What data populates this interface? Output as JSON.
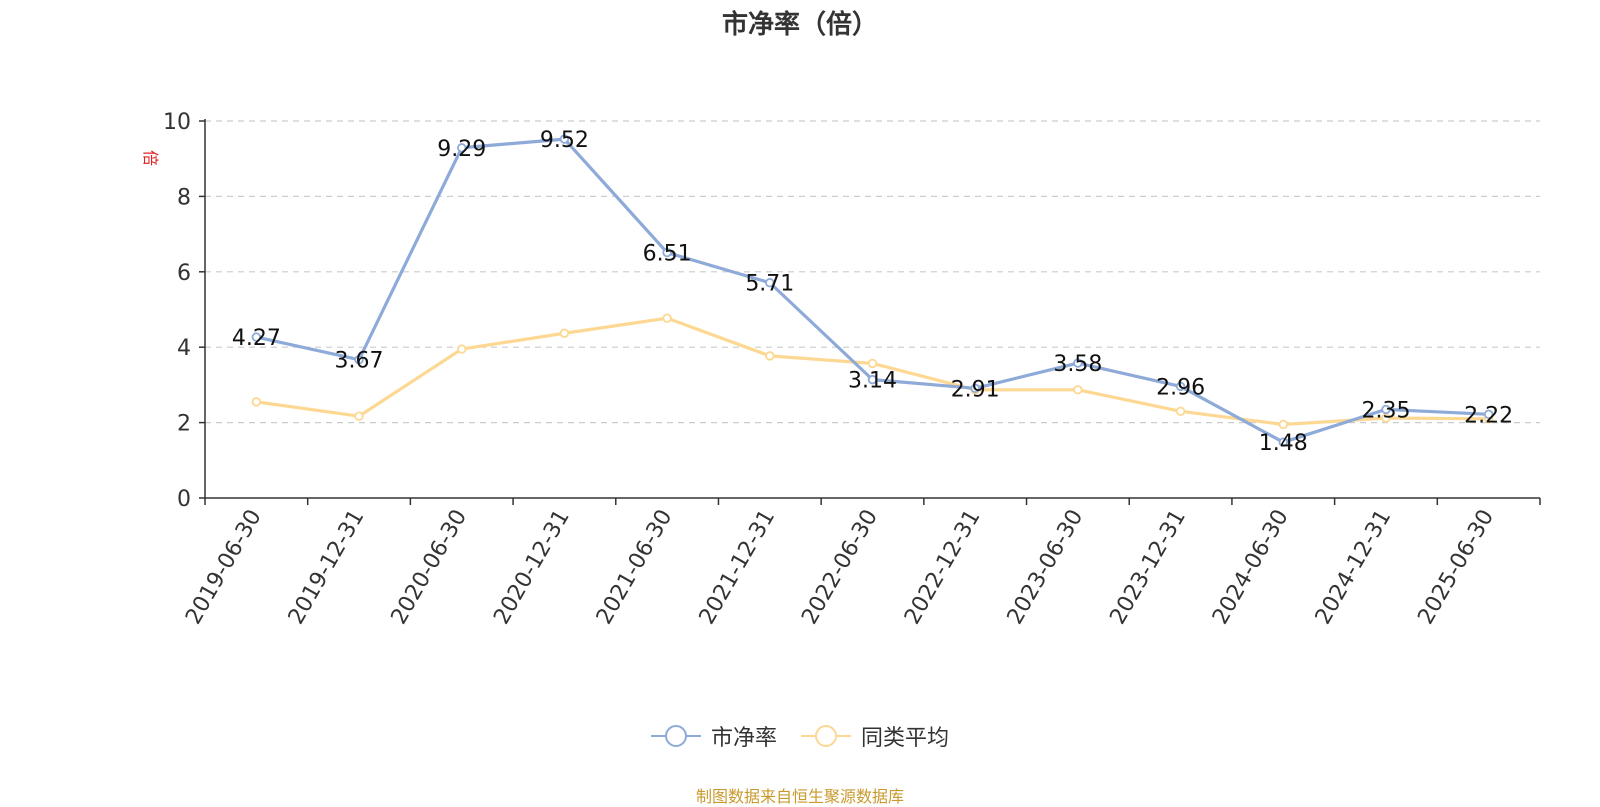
{
  "chart_data": {
    "type": "line",
    "title": "市净率（倍）",
    "ylabel": "倍",
    "ylim": [
      0,
      10
    ],
    "yticks": [
      0,
      2,
      4,
      6,
      8,
      10
    ],
    "grid": true,
    "legend_position": "bottom",
    "categories": [
      "2019-06-30",
      "2019-12-31",
      "2020-06-30",
      "2020-12-31",
      "2021-06-30",
      "2021-12-31",
      "2022-06-30",
      "2022-12-31",
      "2023-06-30",
      "2023-12-31",
      "2024-06-30",
      "2024-12-31",
      "2025-06-30"
    ],
    "series": [
      {
        "name": "市净率",
        "color": "#8eaad8",
        "show_labels": true,
        "values": [
          4.27,
          3.67,
          9.29,
          9.52,
          6.51,
          5.71,
          3.14,
          2.91,
          3.58,
          2.96,
          1.48,
          2.35,
          2.22
        ]
      },
      {
        "name": "同类平均",
        "color": "#fcd893",
        "show_labels": false,
        "values": [
          2.55,
          2.17,
          3.95,
          4.37,
          4.77,
          3.77,
          3.57,
          2.87,
          2.87,
          2.3,
          1.95,
          2.12,
          2.1
        ]
      }
    ]
  },
  "footer": {
    "source": "制图数据来自恒生聚源数据库"
  }
}
